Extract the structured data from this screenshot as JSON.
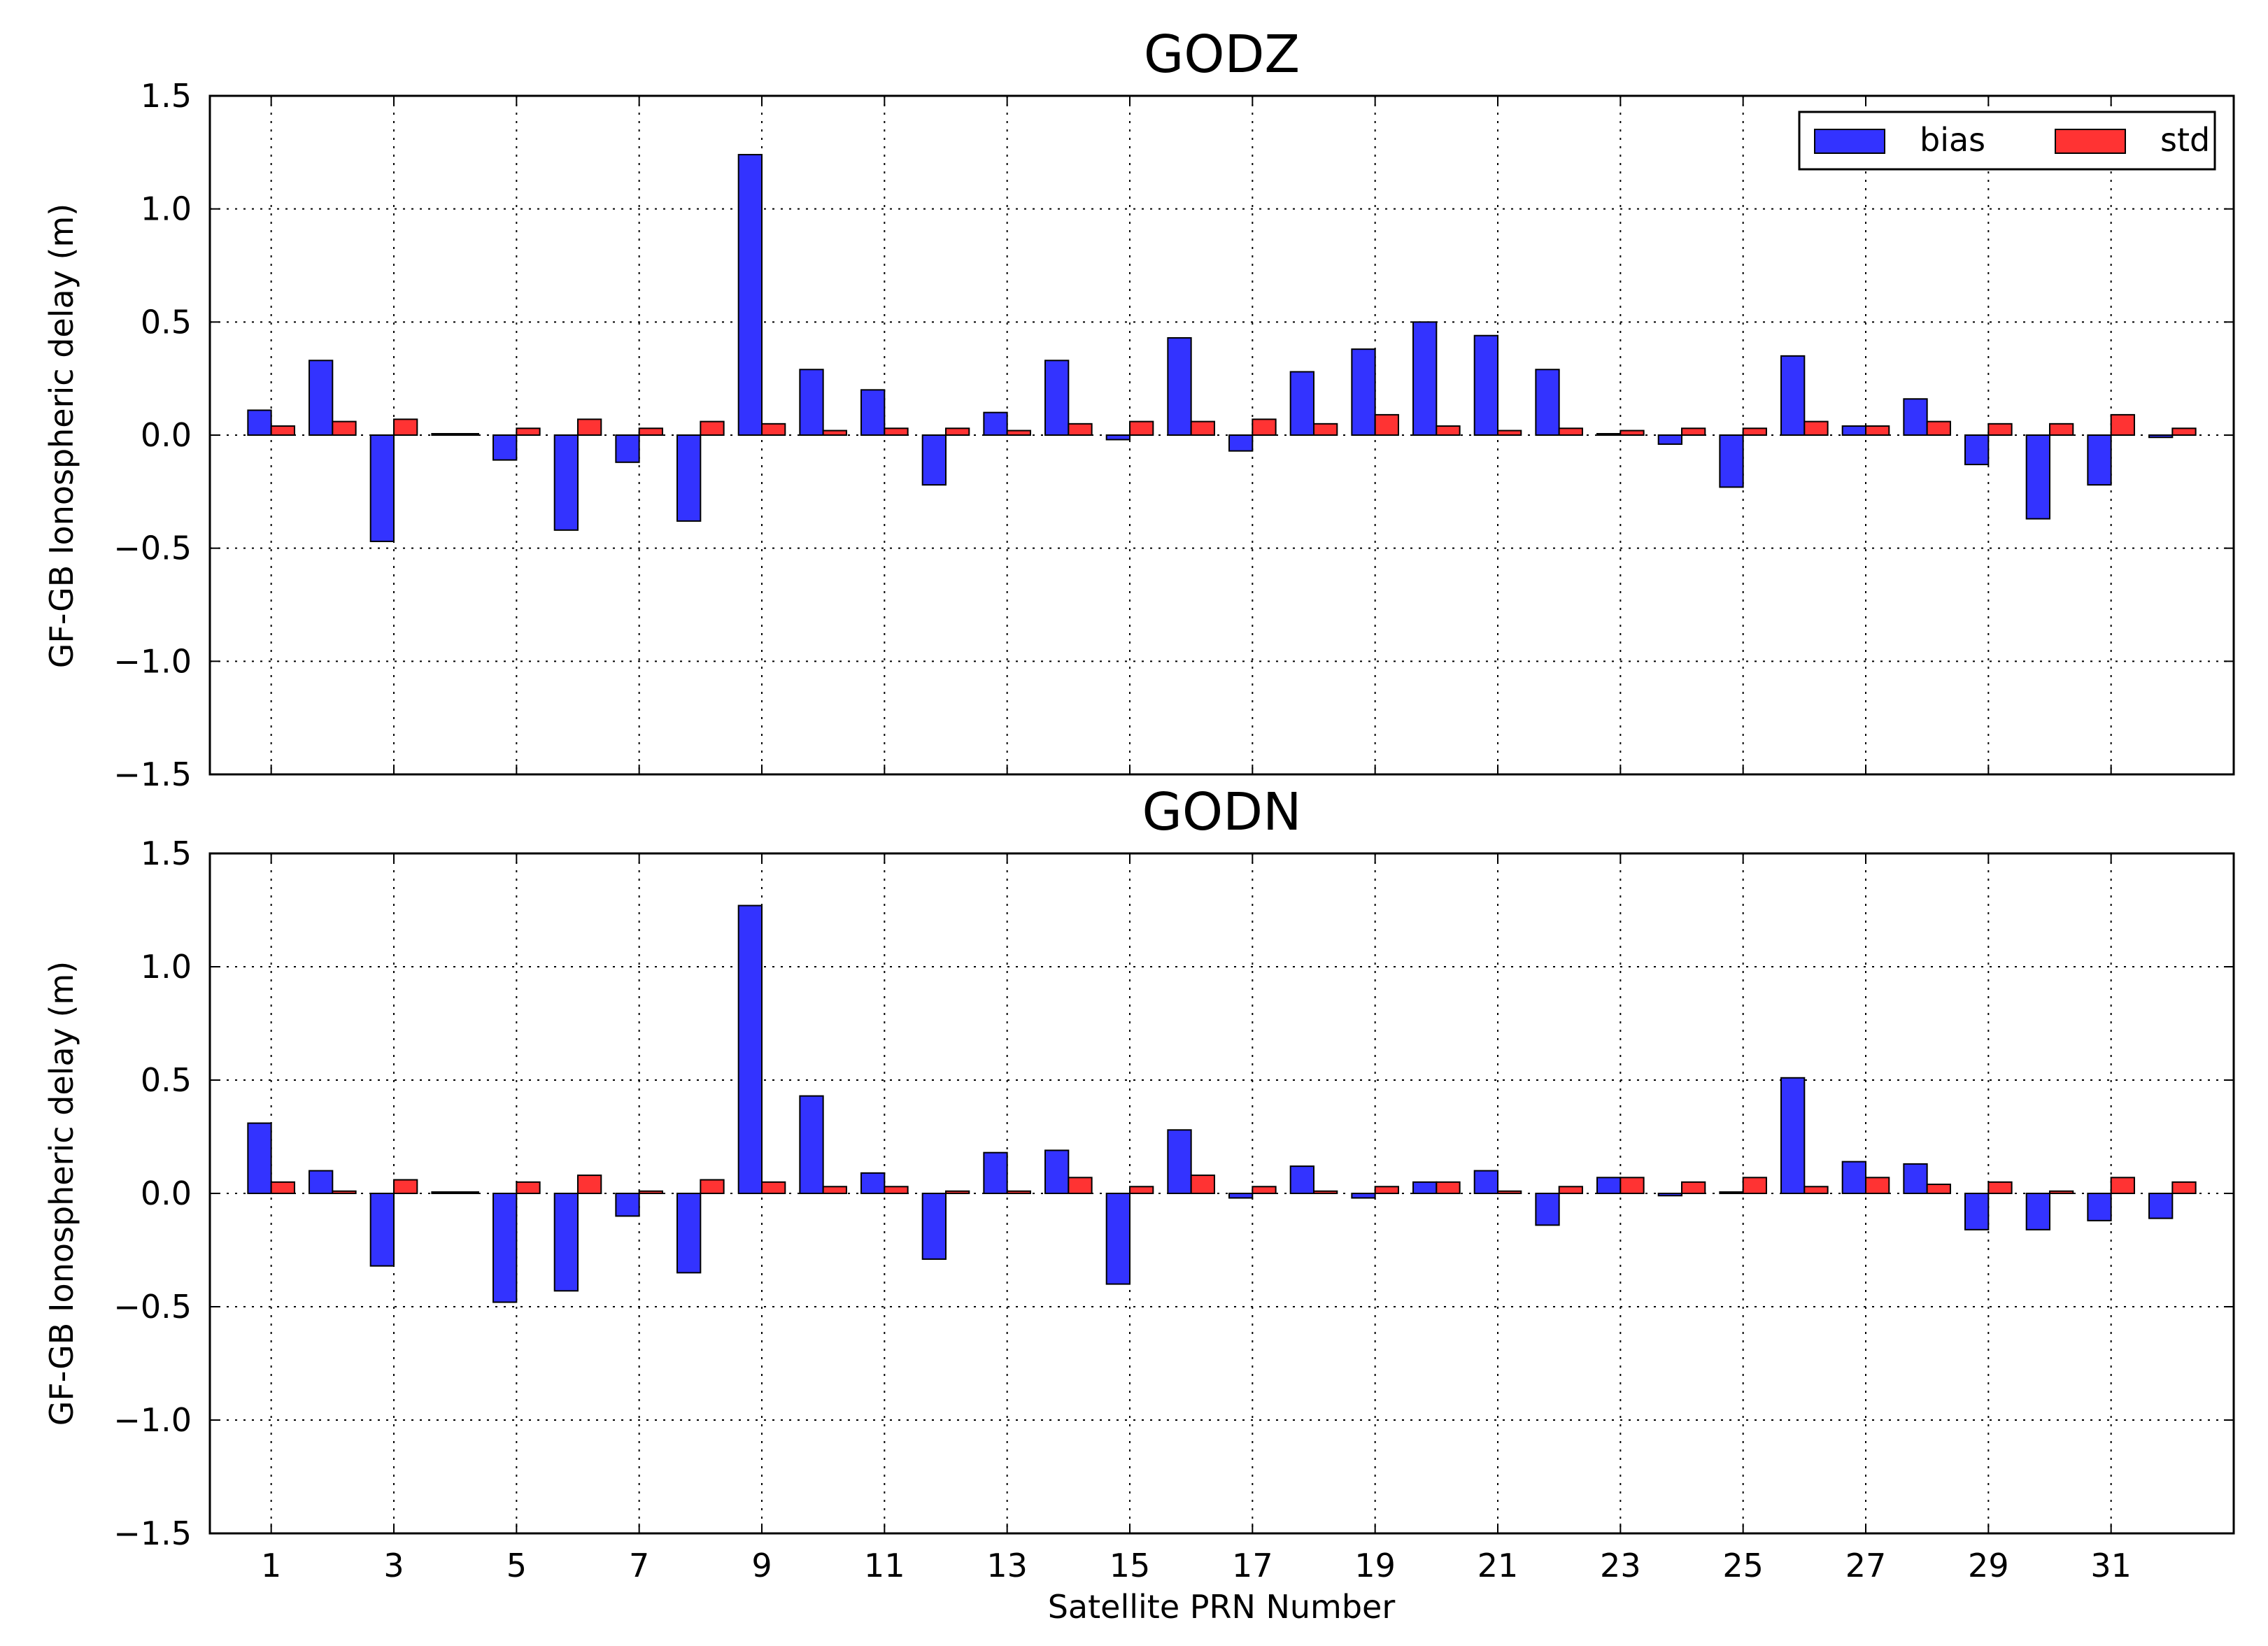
{
  "figure": {
    "xlabel": "Satellite PRN Number",
    "ylabel": "GF-GB Ionospheric delay (m)"
  },
  "legend": {
    "placement": "top-right",
    "items": [
      {
        "label": "bias",
        "color": "#3333ff"
      },
      {
        "label": "std",
        "color": "#ff3333"
      }
    ]
  },
  "chart_data": [
    {
      "type": "bar",
      "title": "GODZ",
      "xlabel": "",
      "ylabel": "GF-GB Ionospheric delay (m)",
      "ylim": [
        -1.5,
        1.5
      ],
      "xlim": [
        0,
        33
      ],
      "yticks": [
        1.5,
        1.0,
        0.5,
        0.0,
        -0.5,
        -1.0,
        -1.5
      ],
      "ytick_labels": [
        "1.5",
        "1.0",
        "0.5",
        "0.0",
        "−0.5",
        "−1.0",
        "−1.5"
      ],
      "xticks": [
        1,
        3,
        5,
        7,
        9,
        11,
        13,
        15,
        17,
        19,
        21,
        23,
        25,
        27,
        29,
        31
      ],
      "xtick_labels": [],
      "grid": true,
      "legend": true,
      "categories": [
        1,
        2,
        3,
        4,
        5,
        6,
        7,
        8,
        9,
        10,
        11,
        12,
        13,
        14,
        15,
        16,
        17,
        18,
        19,
        20,
        21,
        22,
        23,
        24,
        25,
        26,
        27,
        28,
        29,
        30,
        31,
        32
      ],
      "series": [
        {
          "name": "bias",
          "color": "#3333ff",
          "values": [
            0.11,
            0.33,
            -0.47,
            0.0,
            -0.11,
            -0.42,
            -0.12,
            -0.38,
            1.24,
            0.29,
            0.2,
            -0.22,
            0.1,
            0.33,
            -0.02,
            0.43,
            -0.07,
            0.28,
            0.38,
            0.5,
            0.44,
            0.29,
            0.0,
            -0.04,
            -0.23,
            0.35,
            0.04,
            0.16,
            -0.13,
            -0.37,
            -0.22,
            -0.01
          ]
        },
        {
          "name": "std",
          "color": "#ff3333",
          "values": [
            0.04,
            0.06,
            0.07,
            0.0,
            0.03,
            0.07,
            0.03,
            0.06,
            0.05,
            0.02,
            0.03,
            0.03,
            0.02,
            0.05,
            0.06,
            0.06,
            0.07,
            0.05,
            0.09,
            0.04,
            0.02,
            0.03,
            0.02,
            0.03,
            0.03,
            0.06,
            0.04,
            0.06,
            0.05,
            0.05,
            0.09,
            0.03
          ]
        }
      ]
    },
    {
      "type": "bar",
      "title": "GODN",
      "xlabel": "Satellite PRN Number",
      "ylabel": "GF-GB Ionospheric delay (m)",
      "ylim": [
        -1.5,
        1.5
      ],
      "xlim": [
        0,
        33
      ],
      "yticks": [
        1.5,
        1.0,
        0.5,
        0.0,
        -0.5,
        -1.0,
        -1.5
      ],
      "ytick_labels": [
        "1.5",
        "1.0",
        "0.5",
        "0.0",
        "−0.5",
        "−1.0",
        "−1.5"
      ],
      "xticks": [
        1,
        3,
        5,
        7,
        9,
        11,
        13,
        15,
        17,
        19,
        21,
        23,
        25,
        27,
        29,
        31
      ],
      "xtick_labels": [
        "1",
        "3",
        "5",
        "7",
        "9",
        "11",
        "13",
        "15",
        "17",
        "19",
        "21",
        "23",
        "25",
        "27",
        "29",
        "31"
      ],
      "grid": true,
      "legend": false,
      "categories": [
        1,
        2,
        3,
        4,
        5,
        6,
        7,
        8,
        9,
        10,
        11,
        12,
        13,
        14,
        15,
        16,
        17,
        18,
        19,
        20,
        21,
        22,
        23,
        24,
        25,
        26,
        27,
        28,
        29,
        30,
        31,
        32
      ],
      "series": [
        {
          "name": "bias",
          "color": "#3333ff",
          "values": [
            0.31,
            0.1,
            -0.32,
            0.0,
            -0.48,
            -0.43,
            -0.1,
            -0.35,
            1.27,
            0.43,
            0.09,
            -0.29,
            0.18,
            0.19,
            -0.4,
            0.28,
            -0.02,
            0.12,
            -0.02,
            0.05,
            0.1,
            -0.14,
            0.07,
            -0.01,
            0.0,
            0.51,
            0.14,
            0.13,
            -0.16,
            -0.16,
            -0.12,
            -0.11
          ]
        },
        {
          "name": "std",
          "color": "#ff3333",
          "values": [
            0.05,
            0.01,
            0.06,
            0.0,
            0.05,
            0.08,
            0.01,
            0.06,
            0.05,
            0.03,
            0.03,
            0.01,
            0.01,
            0.07,
            0.03,
            0.08,
            0.03,
            0.01,
            0.03,
            0.05,
            0.01,
            0.03,
            0.07,
            0.05,
            0.07,
            0.03,
            0.07,
            0.04,
            0.05,
            0.01,
            0.07,
            0.05
          ]
        }
      ]
    }
  ]
}
